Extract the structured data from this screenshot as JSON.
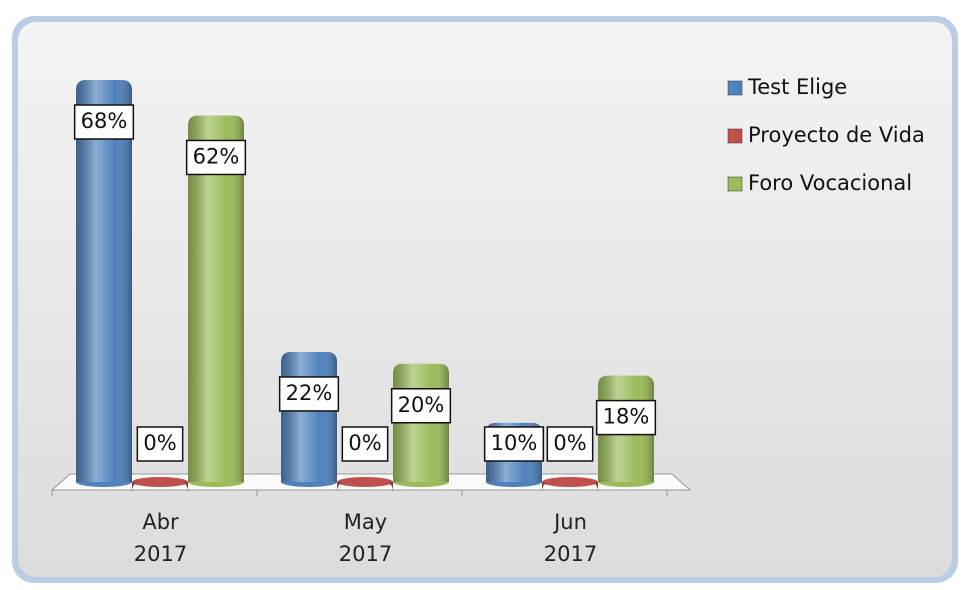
{
  "chart_data": {
    "type": "bar",
    "categories": [
      "Abr 2017",
      "May 2017",
      "Jun 2017"
    ],
    "series": [
      {
        "name": "Test Elige",
        "color": "#4f81bd",
        "values": [
          68,
          22,
          10
        ],
        "value_labels": [
          "68%",
          "22%",
          "10%"
        ]
      },
      {
        "name": "Proyecto de Vida",
        "color": "#c0504d",
        "values": [
          0,
          0,
          0
        ],
        "value_labels": [
          "0%",
          "0%",
          "0%"
        ]
      },
      {
        "name": "Foro Vocacional",
        "color": "#9bbb59",
        "values": [
          62,
          20,
          18
        ],
        "value_labels": [
          "62%",
          "20%",
          "18%"
        ]
      }
    ],
    "legend": "right"
  }
}
